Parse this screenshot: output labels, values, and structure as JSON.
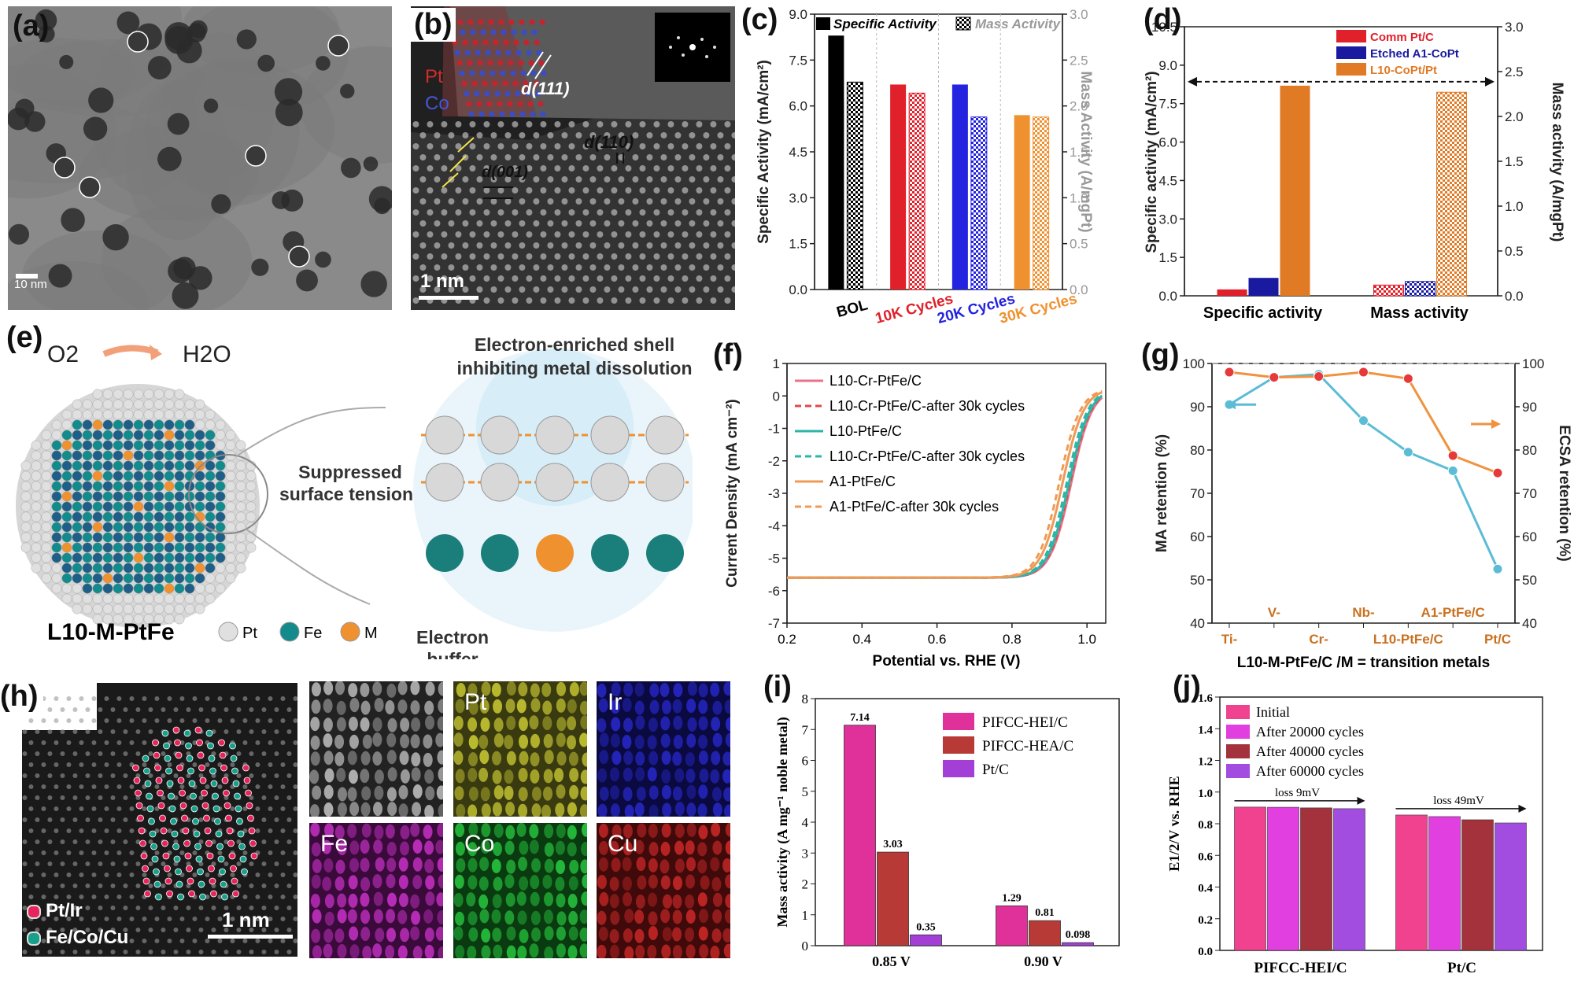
{
  "panel_labels": {
    "a": "(a)",
    "b": "(b)",
    "c": "(c)",
    "d": "(d)",
    "e": "(e)",
    "f": "(f)",
    "g": "(g)",
    "h": "(h)",
    "i": "(i)",
    "j": "(j)"
  },
  "panel_a": {
    "scale_bar": "10 nm"
  },
  "panel_b": {
    "legend_pt": "Pt",
    "legend_co": "Co",
    "d111": "d(111)",
    "d110": "d(110)",
    "d001": "d(001)",
    "scale_bar": "1 nm"
  },
  "panel_e": {
    "reactant": "O2",
    "product": "H2O",
    "shell_title_1": "Electron-enriched shell",
    "shell_title_2": "inhibiting metal dissolution",
    "tension_1": "Suppressed",
    "tension_2": "surface tension",
    "buffer_1": "Electron",
    "buffer_2": "buffer",
    "particle_label": "L10-M-PtFe",
    "legend": [
      "Pt",
      "Fe",
      "M"
    ],
    "colors": {
      "pt": "#e0e0e0",
      "fe": "#138a8c",
      "m": "#f0912f",
      "core": "#1f5f87"
    }
  },
  "panel_h": {
    "legend_1": "Pt/Ir",
    "legend_2": "Fe/Co/Cu",
    "scale_bar": "1 nm",
    "maps": [
      "",
      "Pt",
      "Ir",
      "Fe",
      "Co",
      "Cu"
    ]
  },
  "chart_data": [
    {
      "id": "c",
      "type": "bar",
      "categories": [
        "BOL",
        "10K Cycles",
        "20K Cycles",
        "30K Cycles"
      ],
      "category_colors": [
        "#000000",
        "#e0202a",
        "#2323e0",
        "#f0912f"
      ],
      "series": [
        {
          "name": "Specific Activity",
          "axis": "left",
          "values": [
            8.3,
            6.7,
            6.7,
            5.7
          ]
        },
        {
          "name": "Mass Activity",
          "axis": "right",
          "values": [
            2.26,
            2.14,
            1.88,
            1.88
          ]
        }
      ],
      "ylabel": "Specific Activity (mA/cm²)",
      "y2label": "Mass Activity (A/mgPt)",
      "ylim": [
        0,
        9.0
      ],
      "y2lim": [
        0,
        3.0
      ],
      "yticks": [
        "0.0",
        "1.5",
        "3.0",
        "4.5",
        "6.0",
        "7.5",
        "9.0"
      ],
      "y2ticks": [
        "0.0",
        "0.5",
        "1.0",
        "1.5",
        "2.0",
        "2.5",
        "3.0"
      ]
    },
    {
      "id": "d",
      "type": "bar",
      "categories": [
        "Specific activity",
        "Mass activity"
      ],
      "series": [
        {
          "name": "Comm Pt/C",
          "color": "#e0202a",
          "values": [
            0.25,
            0.12
          ]
        },
        {
          "name": "Etched A1-CoPt",
          "color": "#1a1aa0",
          "values": [
            0.7,
            0.16
          ]
        },
        {
          "name": "L10-CoPt/Pt",
          "color": "#e07a25",
          "values": [
            8.2,
            2.27
          ]
        }
      ],
      "ylabel": "Specific activity (mA/cm²)",
      "y2label": "Mass activity (A/mgPt)",
      "ylim": [
        0,
        10.5
      ],
      "y2lim": [
        0,
        3.0
      ],
      "yticks": [
        "0.0",
        "1.5",
        "3.0",
        "4.5",
        "6.0",
        "7.5",
        "9.0",
        "10.5"
      ],
      "y2ticks": [
        "0.0",
        "0.5",
        "1.0",
        "1.5",
        "2.0",
        "2.5",
        "3.0"
      ]
    },
    {
      "id": "f",
      "type": "line",
      "xlabel": "Potential vs. RHE (V)",
      "ylabel": "Current Density (mA cm⁻²)",
      "xlim": [
        0.2,
        1.05
      ],
      "ylim": [
        -7,
        1
      ],
      "xticks": [
        "0.2",
        "0.4",
        "0.6",
        "0.8",
        "1.0"
      ],
      "yticks": [
        "1",
        "0",
        "-1",
        "-2",
        "-3",
        "-4",
        "-5",
        "-6",
        "-7"
      ],
      "series": [
        {
          "name": "L10-Cr-PtFe/C",
          "color": "#e8738a",
          "dash": false,
          "e_half": 0.958
        },
        {
          "name": "L10-Cr-PtFe/C-after 30k cycles",
          "color": "#e04a4a",
          "dash": true,
          "e_half": 0.955
        },
        {
          "name": "L10-PtFe/C",
          "color": "#2db5a8",
          "dash": false,
          "e_half": 0.952
        },
        {
          "name": "L10-Cr-PtFe/C-after 30k cycles",
          "color": "#2db5a8",
          "dash": true,
          "e_half": 0.946
        },
        {
          "name": "A1-PtFe/C",
          "color": "#f09a55",
          "dash": false,
          "e_half": 0.935
        },
        {
          "name": "A1-PtFe/C-after 30k cycles",
          "color": "#f09a55",
          "dash": true,
          "e_half": 0.926
        }
      ]
    },
    {
      "id": "g",
      "type": "line",
      "categories": [
        "Ti-",
        "V-",
        "Cr-",
        "Nb-",
        "L10-PtFe/C",
        "A1-PtFe/C",
        "Pt/C"
      ],
      "xlabel": "L10-M-PtFe/C /M = transition metals",
      "ylabel": "MA retention (%)",
      "y2label": "ECSA retention (%)",
      "ylim": [
        40,
        100
      ],
      "y2lim": [
        40,
        100
      ],
      "yticks": [
        "40",
        "50",
        "60",
        "70",
        "80",
        "90",
        "100"
      ],
      "series": [
        {
          "name": "MA retention",
          "color": "#5bbcd6",
          "values": [
            90.5,
            96.8,
            97.5,
            86.8,
            79.5,
            75.2,
            52.5
          ]
        },
        {
          "name": "ECSA retention",
          "color": "#f0923e",
          "values": [
            98,
            96.8,
            97,
            98,
            96.5,
            78.7,
            74.7
          ]
        }
      ]
    },
    {
      "id": "i",
      "type": "bar",
      "categories": [
        "0.85 V",
        "0.90 V"
      ],
      "ylabel": "Mass activity (A mg⁻¹ noble metal)",
      "ylim": [
        0,
        8
      ],
      "yticks": [
        "0",
        "1",
        "2",
        "3",
        "4",
        "5",
        "6",
        "7",
        "8"
      ],
      "series": [
        {
          "name": "PIFCC-HEI/C",
          "color": "#e0309a",
          "values": [
            7.14,
            1.29
          ],
          "labels": [
            "7.14",
            "1.29"
          ]
        },
        {
          "name": "PIFCC-HEA/C",
          "color": "#b83a36",
          "values": [
            3.03,
            0.81
          ],
          "labels": [
            "3.03",
            "0.81"
          ]
        },
        {
          "name": "Pt/C",
          "color": "#a33fd6",
          "values": [
            0.35,
            0.098
          ],
          "labels": [
            "0.35",
            "0.098"
          ]
        }
      ]
    },
    {
      "id": "j",
      "type": "bar",
      "categories": [
        "PIFCC-HEI/C",
        "Pt/C"
      ],
      "ylabel": "E1/2/V vs. RHE",
      "ylim": [
        0,
        1.6
      ],
      "yticks": [
        "0.0",
        "0.2",
        "0.4",
        "0.6",
        "0.8",
        "1.0",
        "1.2",
        "1.4",
        "1.6"
      ],
      "annotations": [
        "loss 9mV",
        "loss 49mV"
      ],
      "series": [
        {
          "name": "Initial",
          "color": "#f0428f",
          "values": [
            0.905,
            0.855
          ]
        },
        {
          "name": "After 20000 cycles",
          "color": "#e23fe0",
          "values": [
            0.904,
            0.845
          ]
        },
        {
          "name": "After 40000 cycles",
          "color": "#a3323c",
          "values": [
            0.9,
            0.825
          ]
        },
        {
          "name": "After 60000 cycles",
          "color": "#a24de0",
          "values": [
            0.895,
            0.805
          ]
        }
      ]
    }
  ]
}
